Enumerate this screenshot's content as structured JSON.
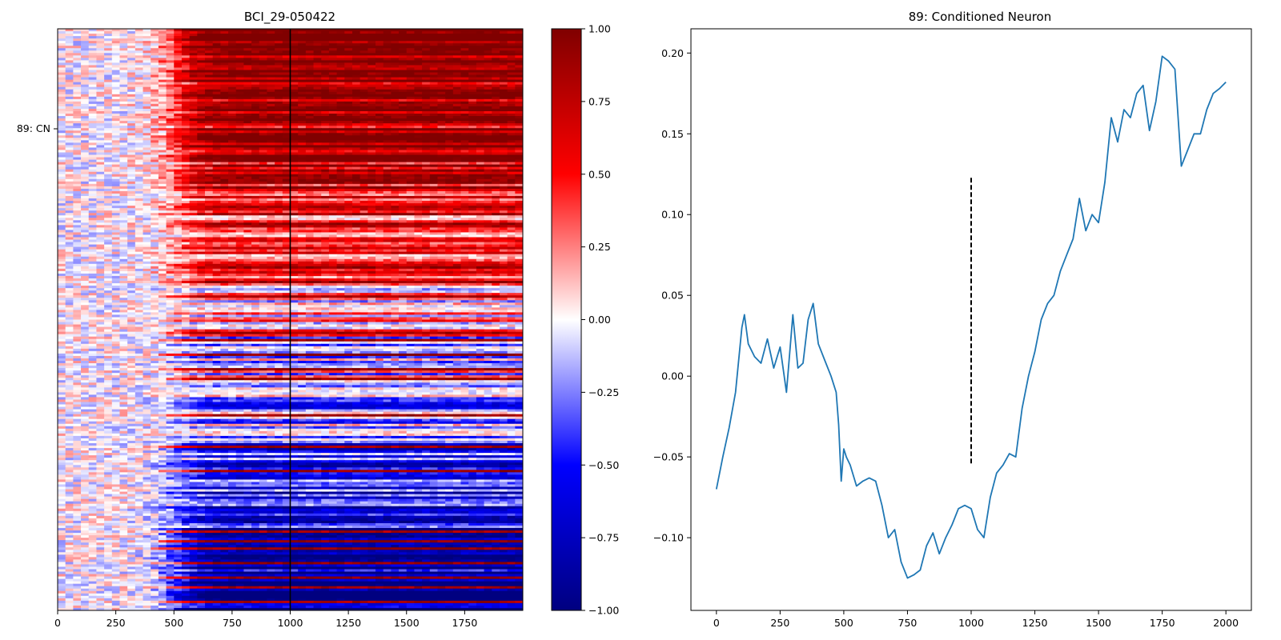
{
  "chart_data": [
    {
      "type": "heatmap",
      "title": "BCI_29-050422",
      "xlabel": "",
      "ylabel": "",
      "xlim": [
        0,
        2000
      ],
      "x_ticks": [
        0,
        250,
        500,
        750,
        1000,
        1250,
        1500,
        1750
      ],
      "y_tick_labels": [
        "89: CN"
      ],
      "colormap": "seismic",
      "colorbar": {
        "range": [
          -1.0,
          1.0
        ],
        "ticks": [
          "1.00",
          "0.75",
          "0.50",
          "0.25",
          "0.00",
          "−0.25",
          "−0.50",
          "−0.75",
          "−1.00"
        ]
      },
      "vertical_marker_x": 1000,
      "marker_color": "#000000"
    },
    {
      "type": "line",
      "title": "89: Conditioned Neuron",
      "xlabel": "",
      "ylabel": "",
      "xlim": [
        -100,
        2100
      ],
      "ylim": [
        -0.145,
        0.215
      ],
      "x_ticks": [
        "0",
        "250",
        "500",
        "750",
        "1000",
        "1250",
        "1500",
        "1750",
        "2000"
      ],
      "y_ticks": [
        "0.20",
        "0.15",
        "0.10",
        "0.05",
        "0.00",
        "−0.05",
        "−0.10"
      ],
      "line_color": "#1f77b4",
      "series": [
        {
          "x": [
            0,
            25,
            50,
            75,
            100,
            110,
            125,
            150,
            175,
            200,
            225,
            250,
            275,
            300,
            320,
            340,
            360,
            380,
            400,
            425,
            450,
            470,
            480,
            490,
            500,
            510,
            525,
            550,
            575,
            600,
            625,
            650,
            675,
            700,
            725,
            750,
            775,
            800,
            825,
            850,
            875,
            900,
            925,
            950,
            975,
            1000,
            1025,
            1050,
            1075,
            1100,
            1125,
            1150,
            1175,
            1200,
            1225,
            1250,
            1275,
            1300,
            1325,
            1350,
            1375,
            1400,
            1425,
            1450,
            1475,
            1500,
            1525,
            1550,
            1575,
            1600,
            1625,
            1650,
            1675,
            1700,
            1725,
            1750,
            1775,
            1800,
            1825,
            1850,
            1875,
            1900,
            1925,
            1950,
            1975,
            2000
          ],
          "y": [
            -0.07,
            -0.05,
            -0.032,
            -0.01,
            0.03,
            0.038,
            0.02,
            0.012,
            0.008,
            0.023,
            0.005,
            0.018,
            -0.01,
            0.038,
            0.005,
            0.008,
            0.035,
            0.045,
            0.02,
            0.01,
            0.0,
            -0.01,
            -0.03,
            -0.065,
            -0.045,
            -0.05,
            -0.055,
            -0.068,
            -0.065,
            -0.063,
            -0.065,
            -0.08,
            -0.1,
            -0.095,
            -0.115,
            -0.125,
            -0.123,
            -0.12,
            -0.105,
            -0.097,
            -0.11,
            -0.1,
            -0.092,
            -0.082,
            -0.08,
            -0.082,
            -0.095,
            -0.1,
            -0.075,
            -0.06,
            -0.055,
            -0.048,
            -0.05,
            -0.02,
            0.0,
            0.015,
            0.035,
            0.045,
            0.05,
            0.065,
            0.075,
            0.085,
            0.11,
            0.09,
            0.1,
            0.095,
            0.12,
            0.16,
            0.145,
            0.165,
            0.16,
            0.175,
            0.18,
            0.152,
            0.17,
            0.198,
            0.195,
            0.19,
            0.13,
            0.14,
            0.15,
            0.15,
            0.165,
            0.175,
            0.178,
            0.182
          ]
        }
      ],
      "dashed_marker": {
        "x": 1000,
        "y_from": -0.054,
        "y_to": 0.124,
        "color": "#000000"
      }
    }
  ]
}
